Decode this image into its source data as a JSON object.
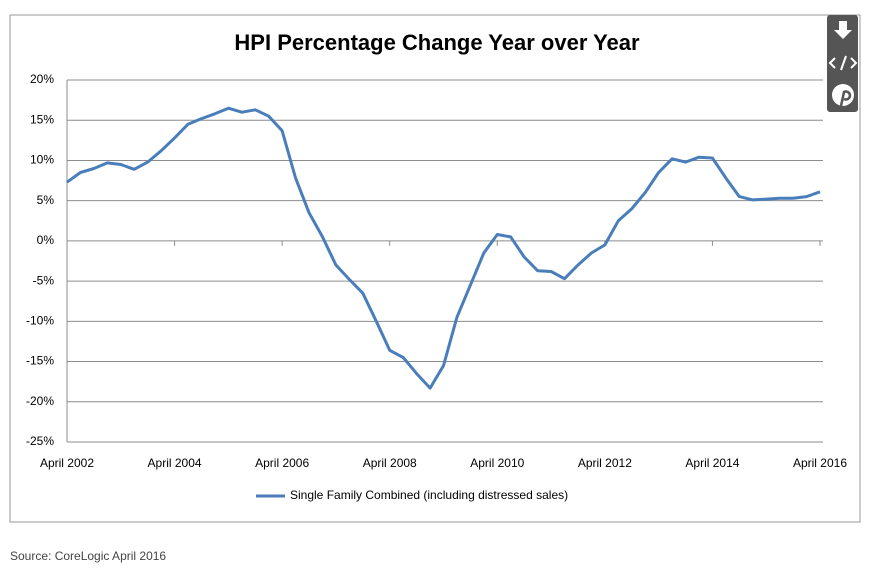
{
  "chart_data": {
    "type": "line",
    "title": "HPI Percentage Change Year over Year",
    "source": "Source: CoreLogic April 2016",
    "x": [
      "2002-04",
      "2002-07",
      "2002-10",
      "2003-01",
      "2003-04",
      "2003-07",
      "2003-10",
      "2004-01",
      "2004-04",
      "2004-07",
      "2004-10",
      "2005-01",
      "2005-04",
      "2005-07",
      "2005-10",
      "2006-01",
      "2006-04",
      "2006-07",
      "2006-10",
      "2007-01",
      "2007-04",
      "2007-07",
      "2007-10",
      "2008-01",
      "2008-04",
      "2008-07",
      "2008-10",
      "2009-01",
      "2009-04",
      "2009-07",
      "2009-10",
      "2010-01",
      "2010-04",
      "2010-07",
      "2010-10",
      "2011-01",
      "2011-04",
      "2011-07",
      "2011-10",
      "2012-01",
      "2012-04",
      "2012-07",
      "2012-10",
      "2013-01",
      "2013-04",
      "2013-07",
      "2013-10",
      "2014-01",
      "2014-04",
      "2014-07",
      "2014-10",
      "2015-01",
      "2015-04",
      "2015-07",
      "2015-10",
      "2016-01",
      "2016-04"
    ],
    "series": [
      {
        "name": "Single Family Combined (including distressed sales)",
        "color": "#4a7ebb",
        "values": [
          7.3,
          8.5,
          9.0,
          9.7,
          9.5,
          8.9,
          9.8,
          11.2,
          12.8,
          14.5,
          15.2,
          15.8,
          16.5,
          16.0,
          16.3,
          15.5,
          13.7,
          7.8,
          3.5,
          0.5,
          -3.0,
          -4.8,
          -6.5,
          -10.0,
          -13.6,
          -14.5,
          -16.5,
          -18.3,
          -15.5,
          -9.5,
          -5.5,
          -1.5,
          0.8,
          0.5,
          -2.0,
          -3.7,
          -3.8,
          -4.7,
          -3.0,
          -1.5,
          -0.5,
          2.5,
          4.0,
          6.0,
          8.5,
          10.2,
          9.8,
          10.4,
          10.3,
          7.8,
          5.5,
          5.1,
          5.2,
          5.3,
          5.3,
          5.5,
          6.1
        ]
      }
    ],
    "xlim": [
      "2002-04",
      "2016-04"
    ],
    "xticks": [
      {
        "value": "2002-04",
        "label": "April 2002"
      },
      {
        "value": "2004-04",
        "label": "April 2004"
      },
      {
        "value": "2006-04",
        "label": "April 2006"
      },
      {
        "value": "2008-04",
        "label": "April 2008"
      },
      {
        "value": "2010-04",
        "label": "April 2010"
      },
      {
        "value": "2012-04",
        "label": "April 2012"
      },
      {
        "value": "2014-04",
        "label": "April 2014"
      },
      {
        "value": "2016-04",
        "label": "April 2016"
      }
    ],
    "ylim": [
      -25,
      20
    ],
    "yticks": [
      {
        "value": -25,
        "label": "-25%"
      },
      {
        "value": -20,
        "label": "-20%"
      },
      {
        "value": -15,
        "label": "-15%"
      },
      {
        "value": -10,
        "label": "-10%"
      },
      {
        "value": -5,
        "label": "-5%"
      },
      {
        "value": 0,
        "label": "0%"
      },
      {
        "value": 5,
        "label": "5%"
      },
      {
        "value": 10,
        "label": "10%"
      },
      {
        "value": 15,
        "label": "15%"
      },
      {
        "value": 20,
        "label": "20%"
      }
    ],
    "grid": true,
    "legend": "bottom"
  }
}
